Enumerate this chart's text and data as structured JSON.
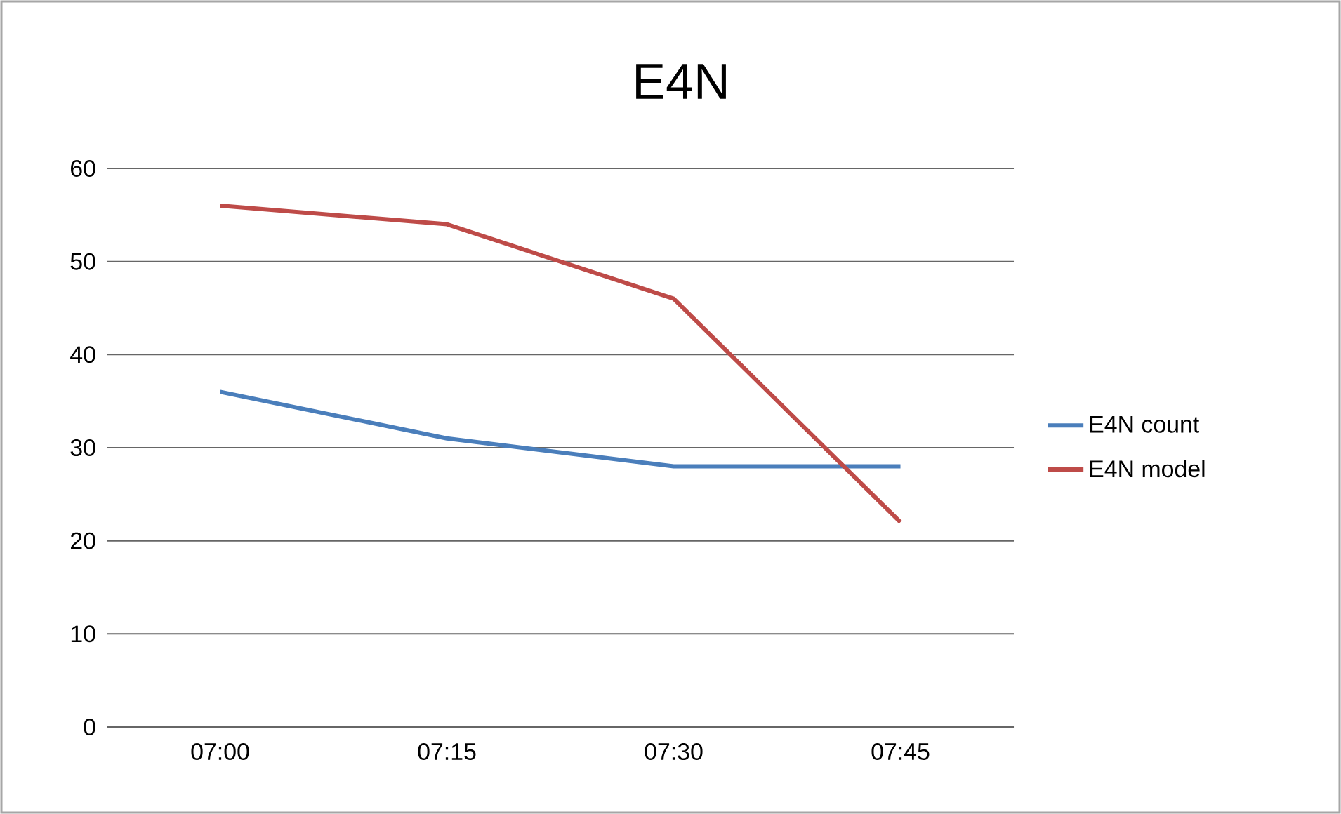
{
  "chart_data": {
    "type": "line",
    "title": "E4N",
    "categories": [
      "07:00",
      "07:15",
      "07:30",
      "07:45"
    ],
    "series": [
      {
        "name": "E4N count",
        "color": "#4a7ebb",
        "values": [
          36,
          31,
          28,
          28
        ]
      },
      {
        "name": "E4N model",
        "color": "#be4b48",
        "values": [
          56,
          54,
          46,
          22
        ]
      }
    ],
    "ylim": [
      0,
      60
    ],
    "yticks": [
      0,
      10,
      20,
      30,
      40,
      50,
      60
    ],
    "grid": "y",
    "legend": "right"
  }
}
